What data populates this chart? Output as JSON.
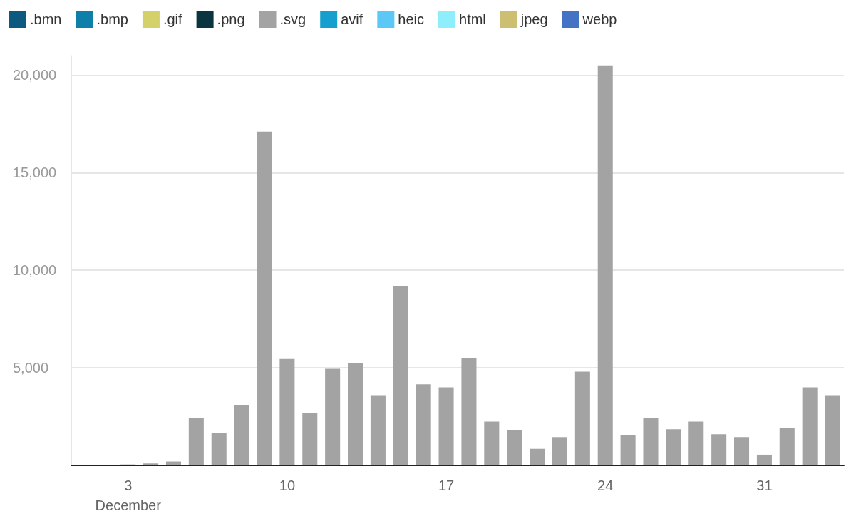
{
  "chart_data": {
    "type": "bar",
    "stacked": true,
    "legend": "top left",
    "grid": "y",
    "categories": [
      null,
      null,
      "3\nDecember",
      null,
      null,
      null,
      null,
      null,
      null,
      "10",
      null,
      null,
      null,
      null,
      null,
      null,
      "17",
      null,
      null,
      null,
      null,
      null,
      null,
      "24",
      null,
      null,
      null,
      null,
      null,
      null,
      "31",
      null,
      null,
      null
    ],
    "ylim": [
      0,
      21000
    ],
    "yticks": [
      {
        "value": 0,
        "label": null
      },
      {
        "value": 5000,
        "label": "5,000"
      },
      {
        "value": 10000,
        "label": "10,000"
      },
      {
        "value": 15000,
        "label": "15,000"
      },
      {
        "value": 20000,
        "label": "20,000"
      }
    ],
    "series": [
      {
        "name": ".bmn",
        "color": "#0d5a80",
        "values": [
          null,
          null,
          null,
          null,
          null,
          null,
          null,
          null,
          null,
          null,
          null,
          null,
          null,
          null,
          null,
          null,
          null,
          null,
          null,
          null,
          null,
          null,
          null,
          null,
          null,
          null,
          null,
          null,
          null,
          null,
          null,
          null,
          null,
          null
        ]
      },
      {
        "name": ".bmp",
        "color": "#0e7fa8",
        "values": [
          null,
          null,
          null,
          null,
          null,
          null,
          null,
          null,
          null,
          null,
          null,
          null,
          null,
          null,
          null,
          null,
          null,
          null,
          null,
          null,
          null,
          null,
          null,
          null,
          null,
          null,
          null,
          null,
          null,
          null,
          null,
          null,
          null,
          null
        ]
      },
      {
        "name": ".gif",
        "color": "#d4d06a",
        "values": [
          null,
          null,
          null,
          null,
          null,
          null,
          null,
          null,
          null,
          null,
          null,
          null,
          null,
          null,
          null,
          null,
          null,
          null,
          null,
          null,
          null,
          null,
          null,
          null,
          null,
          null,
          null,
          null,
          null,
          null,
          null,
          null,
          null,
          null
        ]
      },
      {
        "name": ".png",
        "color": "#0a3440",
        "values": [
          null,
          null,
          null,
          null,
          null,
          null,
          null,
          null,
          null,
          null,
          null,
          null,
          null,
          null,
          null,
          null,
          null,
          null,
          null,
          null,
          null,
          null,
          null,
          null,
          null,
          null,
          null,
          null,
          null,
          null,
          null,
          null,
          null,
          null
        ]
      },
      {
        "name": ".svg",
        "color": "#a3a3a3",
        "values": [
          0,
          0,
          50,
          100,
          200,
          2450,
          1650,
          3100,
          17100,
          5450,
          2700,
          4950,
          5250,
          3600,
          9200,
          4150,
          4000,
          5500,
          2250,
          1800,
          850,
          1450,
          4800,
          20500,
          1550,
          2450,
          1850,
          2250,
          1600,
          1450,
          550,
          1900,
          4000,
          3600
        ]
      },
      {
        "name": "avif",
        "color": "#159fcf",
        "values": [
          null,
          null,
          null,
          null,
          null,
          null,
          null,
          null,
          null,
          null,
          null,
          null,
          null,
          null,
          null,
          null,
          null,
          null,
          null,
          null,
          null,
          null,
          null,
          null,
          null,
          null,
          null,
          null,
          null,
          null,
          null,
          null,
          null,
          null
        ]
      },
      {
        "name": "heic",
        "color": "#5bc8f5",
        "values": [
          null,
          null,
          null,
          null,
          null,
          null,
          null,
          null,
          null,
          null,
          null,
          null,
          null,
          null,
          null,
          null,
          null,
          null,
          null,
          null,
          null,
          null,
          null,
          null,
          null,
          null,
          null,
          null,
          null,
          null,
          null,
          null,
          null,
          null
        ]
      },
      {
        "name": "html",
        "color": "#8eeefc",
        "values": [
          null,
          null,
          null,
          null,
          null,
          null,
          null,
          null,
          null,
          null,
          null,
          null,
          null,
          null,
          null,
          null,
          null,
          null,
          null,
          null,
          null,
          null,
          null,
          null,
          null,
          null,
          null,
          null,
          null,
          null,
          null,
          null,
          null,
          null
        ]
      },
      {
        "name": "jpeg",
        "color": "#cdbf72",
        "values": [
          null,
          null,
          null,
          null,
          null,
          null,
          null,
          null,
          null,
          null,
          null,
          null,
          null,
          null,
          null,
          null,
          null,
          null,
          null,
          null,
          null,
          null,
          null,
          null,
          null,
          null,
          null,
          null,
          null,
          null,
          null,
          null,
          null,
          null
        ]
      },
      {
        "name": "webp",
        "color": "#4472c4",
        "values": [
          null,
          null,
          null,
          null,
          null,
          null,
          null,
          null,
          null,
          null,
          null,
          null,
          null,
          null,
          null,
          null,
          null,
          null,
          null,
          null,
          null,
          null,
          null,
          null,
          null,
          null,
          null,
          null,
          null,
          null,
          null,
          null,
          null,
          null
        ]
      }
    ]
  }
}
